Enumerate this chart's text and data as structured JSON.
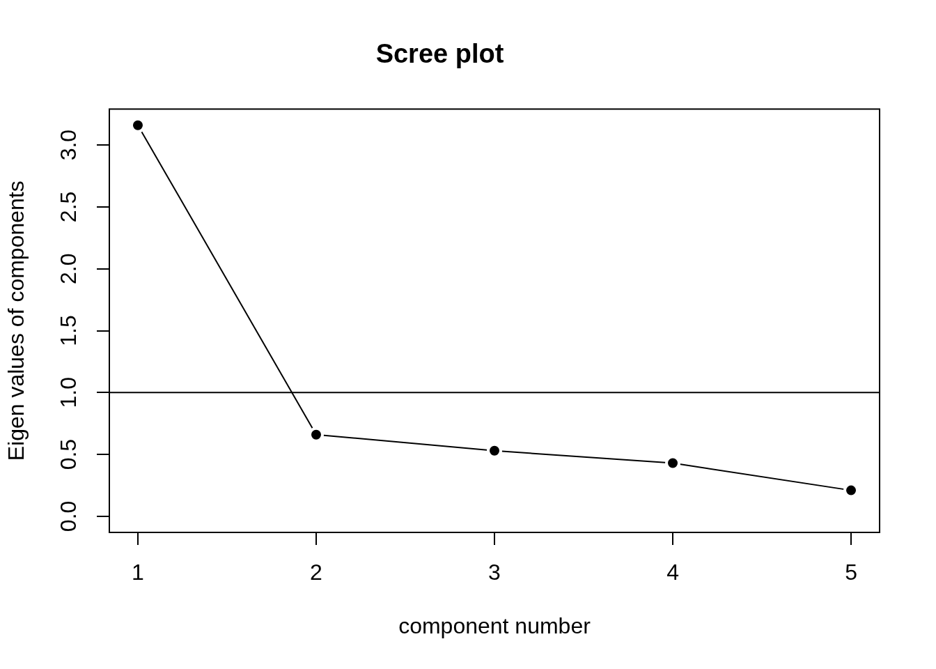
{
  "chart_data": {
    "type": "line",
    "title": "Scree plot",
    "xlabel": "component number",
    "ylabel": "Eigen values of components",
    "x": [
      1,
      2,
      3,
      4,
      5
    ],
    "values": [
      3.16,
      0.66,
      0.53,
      0.43,
      0.21
    ],
    "color": "#000000",
    "marker": "circle",
    "line_style": "solid",
    "xlim": [
      0.84,
      5.16
    ],
    "xticks": [
      1,
      2,
      3,
      4,
      5
    ],
    "ylim": [
      -0.13,
      3.29
    ],
    "yticks": [
      {
        "value": 0,
        "label": "0.0"
      },
      0.5,
      {
        "value": 1,
        "label": "1.0"
      },
      1.5,
      {
        "value": 2,
        "label": "2.0"
      },
      2.5,
      {
        "value": 3,
        "label": "3.0"
      }
    ],
    "ref_lines": [
      {
        "axis": "y",
        "value": 1,
        "color": "#000000"
      }
    ]
  }
}
